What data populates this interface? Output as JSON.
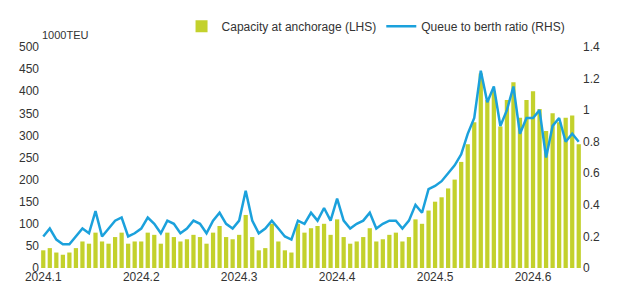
{
  "chart_data": {
    "type": "bar",
    "y_label": "1000TEU",
    "legend": "top",
    "grid": false,
    "categories": [
      "2024.1",
      null,
      null,
      null,
      null,
      null,
      null,
      null,
      null,
      null,
      null,
      null,
      null,
      null,
      null,
      "2024.2",
      null,
      null,
      null,
      null,
      null,
      null,
      null,
      null,
      null,
      null,
      null,
      null,
      null,
      null,
      "2024.3",
      null,
      null,
      null,
      null,
      null,
      null,
      null,
      null,
      null,
      null,
      null,
      null,
      null,
      null,
      "2024.4",
      null,
      null,
      null,
      null,
      null,
      null,
      null,
      null,
      null,
      null,
      null,
      null,
      null,
      null,
      "2024.5",
      null,
      null,
      null,
      null,
      null,
      null,
      null,
      null,
      null,
      null,
      null,
      null,
      null,
      null,
      "2024.6",
      null,
      null,
      null,
      null,
      null,
      null,
      null
    ],
    "series": [
      {
        "name": "Capacity at anchorage (LHS)",
        "type": "bar",
        "color": "#c3d12c",
        "values": [
          40,
          45,
          35,
          30,
          35,
          45,
          60,
          55,
          80,
          60,
          55,
          70,
          80,
          55,
          60,
          60,
          80,
          75,
          55,
          80,
          70,
          60,
          65,
          75,
          70,
          55,
          80,
          95,
          70,
          65,
          75,
          120,
          70,
          40,
          45,
          100,
          60,
          40,
          35,
          100,
          80,
          90,
          95,
          100,
          75,
          110,
          70,
          55,
          60,
          70,
          90,
          60,
          65,
          75,
          80,
          60,
          70,
          110,
          100,
          130,
          150,
          160,
          180,
          200,
          240,
          280,
          330,
          440,
          380,
          400,
          320,
          380,
          420,
          340,
          380,
          400,
          360,
          310,
          350,
          330,
          340,
          345,
          280
        ]
      },
      {
        "name": "Queue to berth ratio (RHS)",
        "type": "line",
        "axis": "y2",
        "color": "#1ba1dc",
        "values": [
          0.2,
          0.25,
          0.18,
          0.15,
          0.15,
          0.2,
          0.25,
          0.22,
          0.36,
          0.2,
          0.25,
          0.3,
          0.32,
          0.2,
          0.22,
          0.25,
          0.32,
          0.28,
          0.22,
          0.3,
          0.28,
          0.22,
          0.25,
          0.3,
          0.28,
          0.22,
          0.3,
          0.35,
          0.28,
          0.25,
          0.3,
          0.49,
          0.3,
          0.22,
          0.25,
          0.3,
          0.25,
          0.2,
          0.18,
          0.3,
          0.28,
          0.35,
          0.3,
          0.38,
          0.3,
          0.44,
          0.3,
          0.25,
          0.28,
          0.3,
          0.35,
          0.25,
          0.28,
          0.3,
          0.3,
          0.25,
          0.3,
          0.4,
          0.35,
          0.5,
          0.52,
          0.55,
          0.6,
          0.65,
          0.72,
          0.85,
          0.95,
          1.25,
          1.05,
          1.15,
          0.9,
          1.0,
          1.15,
          0.85,
          0.95,
          0.95,
          1.0,
          0.7,
          0.9,
          0.95,
          0.8,
          0.85,
          0.8
        ]
      }
    ],
    "ylim": [
      0,
      500
    ],
    "yticks": [
      0,
      50,
      100,
      150,
      200,
      250,
      300,
      350,
      400,
      450,
      500
    ],
    "y2lim": [
      0,
      1.4
    ],
    "y2ticks": [
      0,
      0.2,
      0.4,
      0.6,
      0.8,
      1,
      1.2,
      1.4
    ]
  }
}
